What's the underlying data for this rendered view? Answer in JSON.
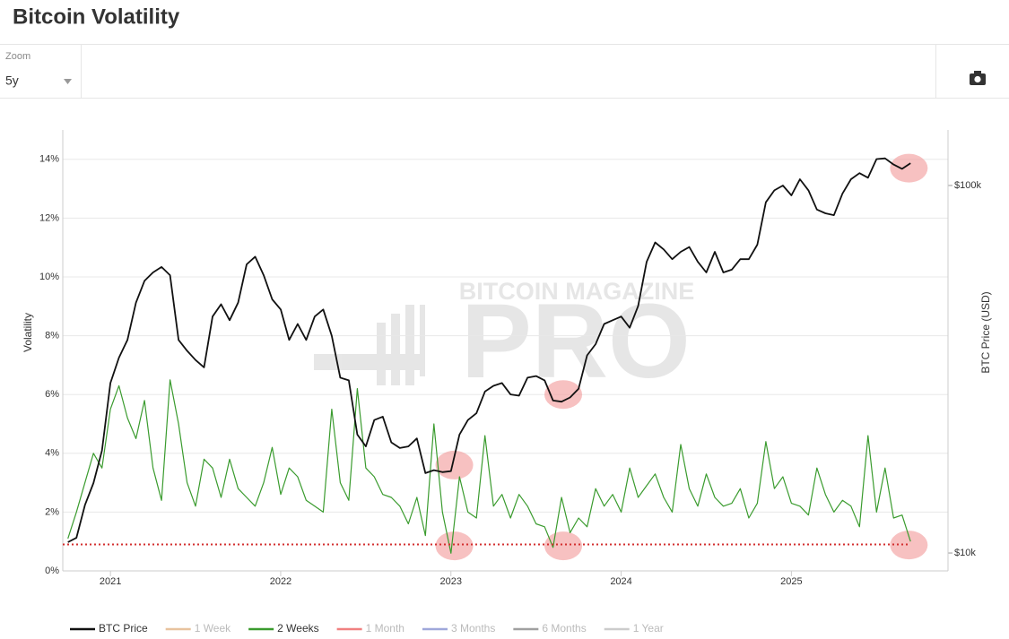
{
  "toolbar": {
    "zoom_label": "Zoom",
    "zoom_value": "5y"
  },
  "watermark": {
    "top": "BITCOIN MAGAZINE",
    "main": "PRO"
  },
  "chart_data": {
    "type": "line",
    "title": "Bitcoin Volatility",
    "ylabel": "Volatility",
    "y2label": "BTC Price (USD)",
    "x": [
      2020.75,
      2020.8,
      2020.85,
      2020.9,
      2020.95,
      2021,
      2021.05,
      2021.1,
      2021.15,
      2021.2,
      2021.25,
      2021.3,
      2021.35,
      2021.4,
      2021.45,
      2021.5,
      2021.55,
      2021.6,
      2021.65,
      2021.7,
      2021.75,
      2021.8,
      2021.85,
      2021.9,
      2021.95,
      2022,
      2022.05,
      2022.1,
      2022.15,
      2022.2,
      2022.25,
      2022.3,
      2022.35,
      2022.4,
      2022.45,
      2022.5,
      2022.55,
      2022.6,
      2022.65,
      2022.7,
      2022.75,
      2022.8,
      2022.85,
      2022.9,
      2022.95,
      2023,
      2023.05,
      2023.1,
      2023.15,
      2023.2,
      2023.25,
      2023.3,
      2023.35,
      2023.4,
      2023.45,
      2023.5,
      2023.55,
      2023.6,
      2023.65,
      2023.7,
      2023.75,
      2023.8,
      2023.85,
      2023.9,
      2023.95,
      2024,
      2024.05,
      2024.1,
      2024.15,
      2024.2,
      2024.25,
      2024.3,
      2024.35,
      2024.4,
      2024.45,
      2024.5,
      2024.55,
      2024.6,
      2024.65,
      2024.7,
      2024.75,
      2024.8,
      2024.85,
      2024.9,
      2024.95,
      2025,
      2025.05,
      2025.1,
      2025.15,
      2025.2,
      2025.25,
      2025.3,
      2025.35,
      2025.4,
      2025.45,
      2025.5,
      2025.55,
      2025.6,
      2025.65,
      2025.7
    ],
    "series": [
      {
        "name": "BTC Price",
        "color": "#111111",
        "axis": "y2",
        "visible": true,
        "values": [
          10700,
          11000,
          13500,
          15500,
          19000,
          29000,
          34000,
          38000,
          48000,
          55000,
          58000,
          60000,
          57000,
          38000,
          35500,
          33500,
          32000,
          44000,
          47500,
          43000,
          48000,
          61000,
          64000,
          57000,
          49000,
          46000,
          38000,
          42000,
          38000,
          44000,
          46000,
          39000,
          30000,
          29500,
          21000,
          19500,
          23000,
          23500,
          20000,
          19300,
          19500,
          20500,
          16500,
          16800,
          16600,
          16700,
          21000,
          23000,
          24000,
          27500,
          28500,
          29000,
          27000,
          26800,
          30000,
          30300,
          29500,
          26000,
          25800,
          26500,
          28000,
          34500,
          37000,
          42000,
          43000,
          44000,
          41000,
          47000,
          62000,
          70000,
          67000,
          63000,
          66000,
          68000,
          62000,
          58000,
          66000,
          58000,
          59000,
          63000,
          63000,
          69000,
          90000,
          97000,
          100000,
          94000,
          104000,
          97000,
          86000,
          84000,
          83000,
          95000,
          104000,
          108000,
          105000,
          118000,
          118500,
          114000,
          111000,
          115000
        ]
      },
      {
        "name": "1 Week",
        "color": "#e8c39e",
        "visible": false
      },
      {
        "name": "2 Weeks",
        "color": "#3a9b2e",
        "visible": true,
        "values": [
          1.1,
          2.0,
          3.0,
          4.0,
          3.5,
          5.5,
          6.3,
          5.2,
          4.5,
          5.8,
          3.5,
          2.4,
          6.5,
          5.0,
          3.0,
          2.2,
          3.8,
          3.5,
          2.5,
          3.8,
          2.8,
          2.5,
          2.2,
          3.0,
          4.2,
          2.6,
          3.5,
          3.2,
          2.4,
          2.2,
          2.0,
          5.5,
          3.0,
          2.4,
          6.2,
          3.5,
          3.2,
          2.6,
          2.5,
          2.2,
          1.6,
          2.5,
          1.2,
          5.0,
          2.0,
          0.6,
          3.2,
          2.0,
          1.8,
          4.6,
          2.2,
          2.6,
          1.8,
          2.6,
          2.2,
          1.6,
          1.5,
          0.8,
          2.5,
          1.3,
          1.8,
          1.5,
          2.8,
          2.2,
          2.6,
          2.0,
          3.5,
          2.5,
          2.9,
          3.3,
          2.5,
          2.0,
          4.3,
          2.8,
          2.2,
          3.3,
          2.5,
          2.2,
          2.3,
          2.8,
          1.8,
          2.3,
          4.4,
          2.8,
          3.2,
          2.3,
          2.2,
          1.9,
          3.5,
          2.6,
          2.0,
          2.4,
          2.2,
          1.5,
          4.6,
          2.0,
          3.5,
          1.8,
          1.9,
          1.0
        ]
      },
      {
        "name": "1 Month",
        "color": "#f08080",
        "visible": false
      },
      {
        "name": "3 Months",
        "color": "#9fa8da",
        "visible": false
      },
      {
        "name": "6 Months",
        "color": "#a0a0a0",
        "visible": false
      },
      {
        "name": "1 Year",
        "color": "#cccccc",
        "visible": false
      }
    ],
    "reference_line": {
      "value": 0.9,
      "color": "#d32f2f"
    },
    "highlights": [
      {
        "x": 2023.02,
        "y": 3.6
      },
      {
        "x": 2023.66,
        "y": 6.0
      },
      {
        "x": 2025.69,
        "y": 13.7
      },
      {
        "x": 2023.02,
        "y": 0.85
      },
      {
        "x": 2023.66,
        "y": 0.85
      },
      {
        "x": 2025.69,
        "y": 0.88
      }
    ],
    "highlight_color": "#f2a0a0",
    "xlim": [
      2020.72,
      2025.92
    ],
    "xticks": [
      2021,
      2022,
      2023,
      2024,
      2025
    ],
    "ylim": [
      0,
      15
    ],
    "yticks": [
      {
        "value": 0,
        "label": "0%"
      },
      {
        "value": 2,
        "label": "2%"
      },
      {
        "value": 4,
        "label": "4%"
      },
      {
        "value": 6,
        "label": "6%"
      },
      {
        "value": 8,
        "label": "8%"
      },
      {
        "value": 10,
        "label": "10%"
      },
      {
        "value": 12,
        "label": "12%"
      },
      {
        "value": 14,
        "label": "14%"
      }
    ],
    "y2lim": [
      8940,
      141600
    ],
    "y2scale": "log",
    "y2ticks": [
      {
        "value": 10000,
        "label": "$10k"
      },
      {
        "value": 100000,
        "label": "$100k"
      }
    ],
    "grid": true
  }
}
